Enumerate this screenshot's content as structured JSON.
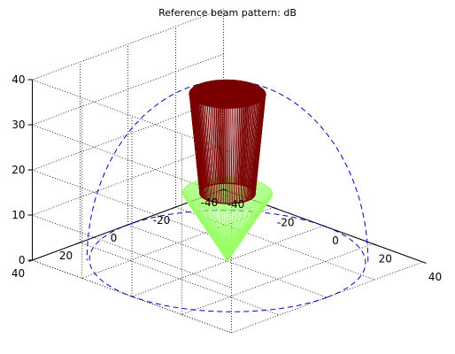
{
  "chart_data": {
    "type": "surface3d",
    "title": "Reference beam pattern: dB",
    "xlabel": "",
    "ylabel": "",
    "zlabel": "",
    "xlim": [
      -40,
      40
    ],
    "ylim": [
      -40,
      40
    ],
    "zlim": [
      0,
      40
    ],
    "x_ticks": [
      "-40",
      "-20",
      "0",
      "20",
      "40"
    ],
    "y_ticks": [
      "-40",
      "-20",
      "0",
      "20",
      "40"
    ],
    "z_ticks": [
      "0",
      "10",
      "20",
      "30",
      "40"
    ],
    "grid": true,
    "view": {
      "azimuth_deg": -37.5,
      "elevation_deg": 30
    },
    "series": [
      {
        "style": "dashed-outline",
        "color": "#0000cc",
        "radius": 40,
        "peak_height": 40,
        "description_values": {
          "base_z": 0,
          "top_z": 40
        }
      },
      {
        "style": "truncated-cone-mesh",
        "color": "#7a0000",
        "bottom_radius": 8,
        "bottom_z": 15,
        "top_radius": 11,
        "top_z": 37
      },
      {
        "style": "cone-mesh",
        "color": "#99ff66",
        "top_radius": 13,
        "top_z": 15,
        "apex_z": 0
      }
    ]
  }
}
